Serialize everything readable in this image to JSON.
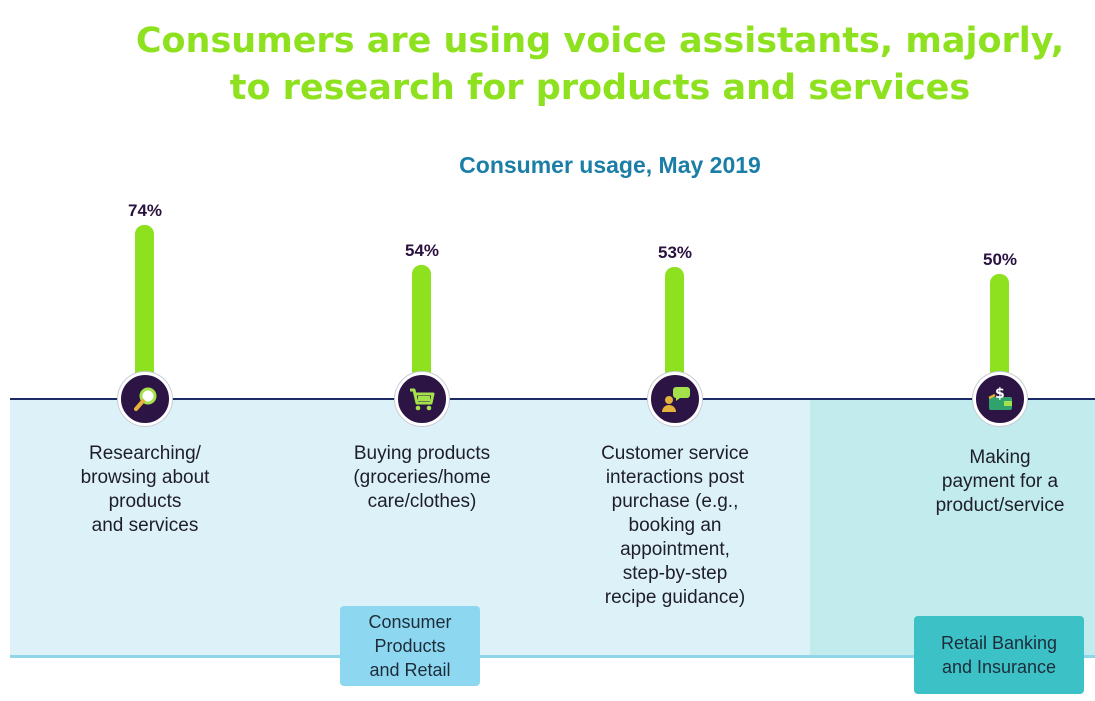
{
  "title_lines": [
    "Consumers are using voice assistants, majorly,",
    "to research for products and services"
  ],
  "subtitle": "Consumer usage, May 2019",
  "chart_data": {
    "type": "bar",
    "title": "Consumer usage, May 2019",
    "unit": "%",
    "categories": [
      "Researching/ browsing about products and services",
      "Buying products (groceries/home care/clothes)",
      "Customer service interactions post purchase (e.g., booking an appointment, step-by-step recipe guidance)",
      "Making payment for a product/service"
    ],
    "values": [
      74,
      54,
      53,
      50
    ],
    "value_labels": [
      "74%",
      "54%",
      "53%",
      "50%"
    ],
    "icons": [
      "search-icon",
      "cart-icon",
      "chat-user-icon",
      "wallet-dollar-icon"
    ],
    "category_lines": [
      [
        "Researching/",
        "browsing about",
        "products",
        "and services"
      ],
      [
        "Buying products",
        "(groceries/home",
        "care/clothes)"
      ],
      [
        "Customer service",
        "interactions post",
        "purchase (e.g.,",
        "booking an",
        "appointment,",
        "step-by-step",
        "recipe guidance)"
      ],
      [
        "Making",
        "payment for a",
        "product/service"
      ]
    ],
    "colors": {
      "bar": "#8ee11e",
      "icon_bg": "#2c1545",
      "label": "#2a1240"
    }
  },
  "industries": [
    {
      "lines": [
        "Consumer",
        "Products",
        "and Retail"
      ],
      "color": "#8dd8f0"
    },
    {
      "lines": [
        "Retail Banking",
        "and Insurance"
      ],
      "color": "#3cc2c6"
    }
  ]
}
